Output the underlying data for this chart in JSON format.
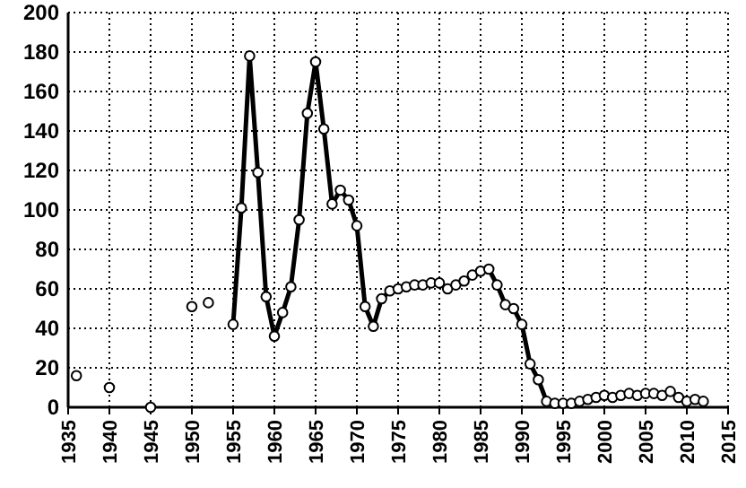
{
  "chart_data": {
    "type": "line",
    "xlim": [
      1935,
      2015
    ],
    "ylim": [
      0,
      200
    ],
    "xticks": [
      1935,
      1940,
      1945,
      1950,
      1955,
      1960,
      1965,
      1970,
      1975,
      1980,
      1985,
      1990,
      1995,
      2000,
      2005,
      2010,
      2015
    ],
    "yticks": [
      0,
      20,
      40,
      60,
      80,
      100,
      120,
      140,
      160,
      180,
      200
    ],
    "grid": true,
    "marker": "circle",
    "series": [
      {
        "type": "scatter",
        "color": "#000000",
        "x": [
          1936,
          1940,
          1945,
          1950,
          1952
        ],
        "values": [
          16,
          10,
          0,
          51,
          53
        ]
      },
      {
        "color": "#000000",
        "x": [
          1955,
          1956,
          1957,
          1958,
          1959,
          1960,
          1961,
          1962,
          1963,
          1964,
          1965,
          1966,
          1967,
          1968,
          1969,
          1970,
          1971,
          1972,
          1973,
          1974,
          1975,
          1976,
          1977,
          1978,
          1979,
          1980,
          1981,
          1982,
          1983,
          1984,
          1985,
          1986,
          1987,
          1988,
          1989,
          1990,
          1991,
          1992,
          1993,
          1994,
          1995,
          1996,
          1997,
          1998,
          1999,
          2000,
          2001,
          2002,
          2003,
          2004,
          2005,
          2006,
          2007,
          2008,
          2009,
          2010,
          2011,
          2012
        ],
        "values": [
          42,
          101,
          178,
          119,
          56,
          36,
          48,
          61,
          95,
          149,
          175,
          141,
          103,
          110,
          105,
          92,
          51,
          41,
          55,
          59,
          60,
          61,
          62,
          62,
          63,
          63,
          60,
          62,
          64,
          67,
          69,
          70,
          62,
          52,
          50,
          42,
          22,
          14,
          3,
          2,
          2,
          2,
          3,
          4,
          5,
          6,
          5,
          6,
          7,
          6,
          7,
          7,
          6,
          8,
          5,
          3,
          4,
          3
        ]
      }
    ]
  }
}
